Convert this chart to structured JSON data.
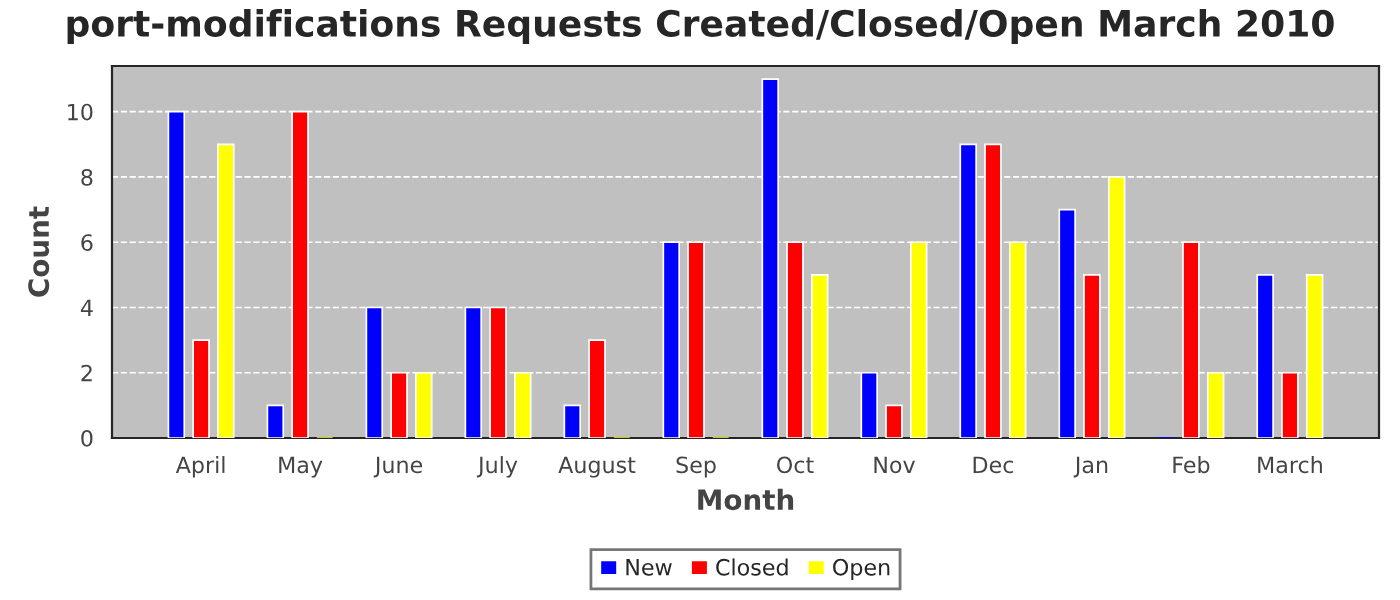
{
  "chart_data": {
    "type": "bar",
    "title": "port-modifications Requests Created/Closed/Open March 2010",
    "xlabel": "Month",
    "ylabel": "Count",
    "categories": [
      "April",
      "May",
      "June",
      "July",
      "August",
      "Sep",
      "Oct",
      "Nov",
      "Dec",
      "Jan",
      "Feb",
      "March"
    ],
    "series": [
      {
        "name": "New",
        "color": "#0000ff",
        "values": [
          10,
          1,
          4,
          4,
          1,
          6,
          11,
          2,
          9,
          7,
          0,
          5
        ]
      },
      {
        "name": "Closed",
        "color": "#ff0000",
        "values": [
          3,
          10,
          2,
          4,
          3,
          6,
          6,
          1,
          9,
          5,
          6,
          2
        ]
      },
      {
        "name": "Open",
        "color": "#ffff00",
        "values": [
          9,
          0,
          2,
          2,
          0,
          0,
          5,
          6,
          6,
          8,
          2,
          5
        ]
      }
    ],
    "ylim": [
      0,
      11.4
    ],
    "yticks": [
      0,
      2,
      4,
      6,
      8,
      10
    ],
    "grid": "y",
    "legend": "bottom"
  }
}
